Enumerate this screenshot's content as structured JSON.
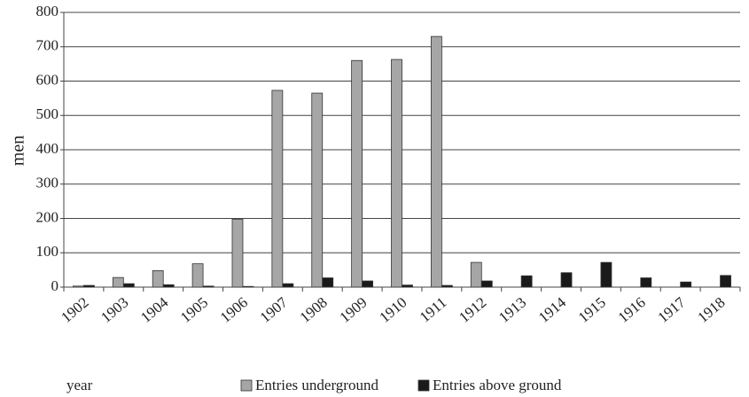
{
  "chart_data": {
    "type": "bar",
    "x_label": "year",
    "y_label": "men",
    "categories": [
      "1902",
      "1903",
      "1904",
      "1905",
      "1906",
      "1907",
      "1908",
      "1909",
      "1910",
      "1911",
      "1912",
      "1913",
      "1914",
      "1915",
      "1916",
      "1917",
      "1918"
    ],
    "series": [
      {
        "name": "Entries underground",
        "color": "#a6a6a6",
        "values": [
          3,
          28,
          48,
          68,
          198,
          573,
          565,
          660,
          663,
          730,
          72,
          0,
          0,
          0,
          0,
          0,
          0
        ]
      },
      {
        "name": "Entries above ground",
        "color": "#1a1a1a",
        "values": [
          5,
          10,
          7,
          3,
          2,
          10,
          27,
          18,
          6,
          5,
          18,
          33,
          42,
          72,
          27,
          15,
          34
        ]
      }
    ],
    "ylim": [
      0,
      800
    ],
    "yticks": [
      0,
      100,
      200,
      300,
      400,
      500,
      600,
      700,
      800
    ],
    "grid": true
  }
}
